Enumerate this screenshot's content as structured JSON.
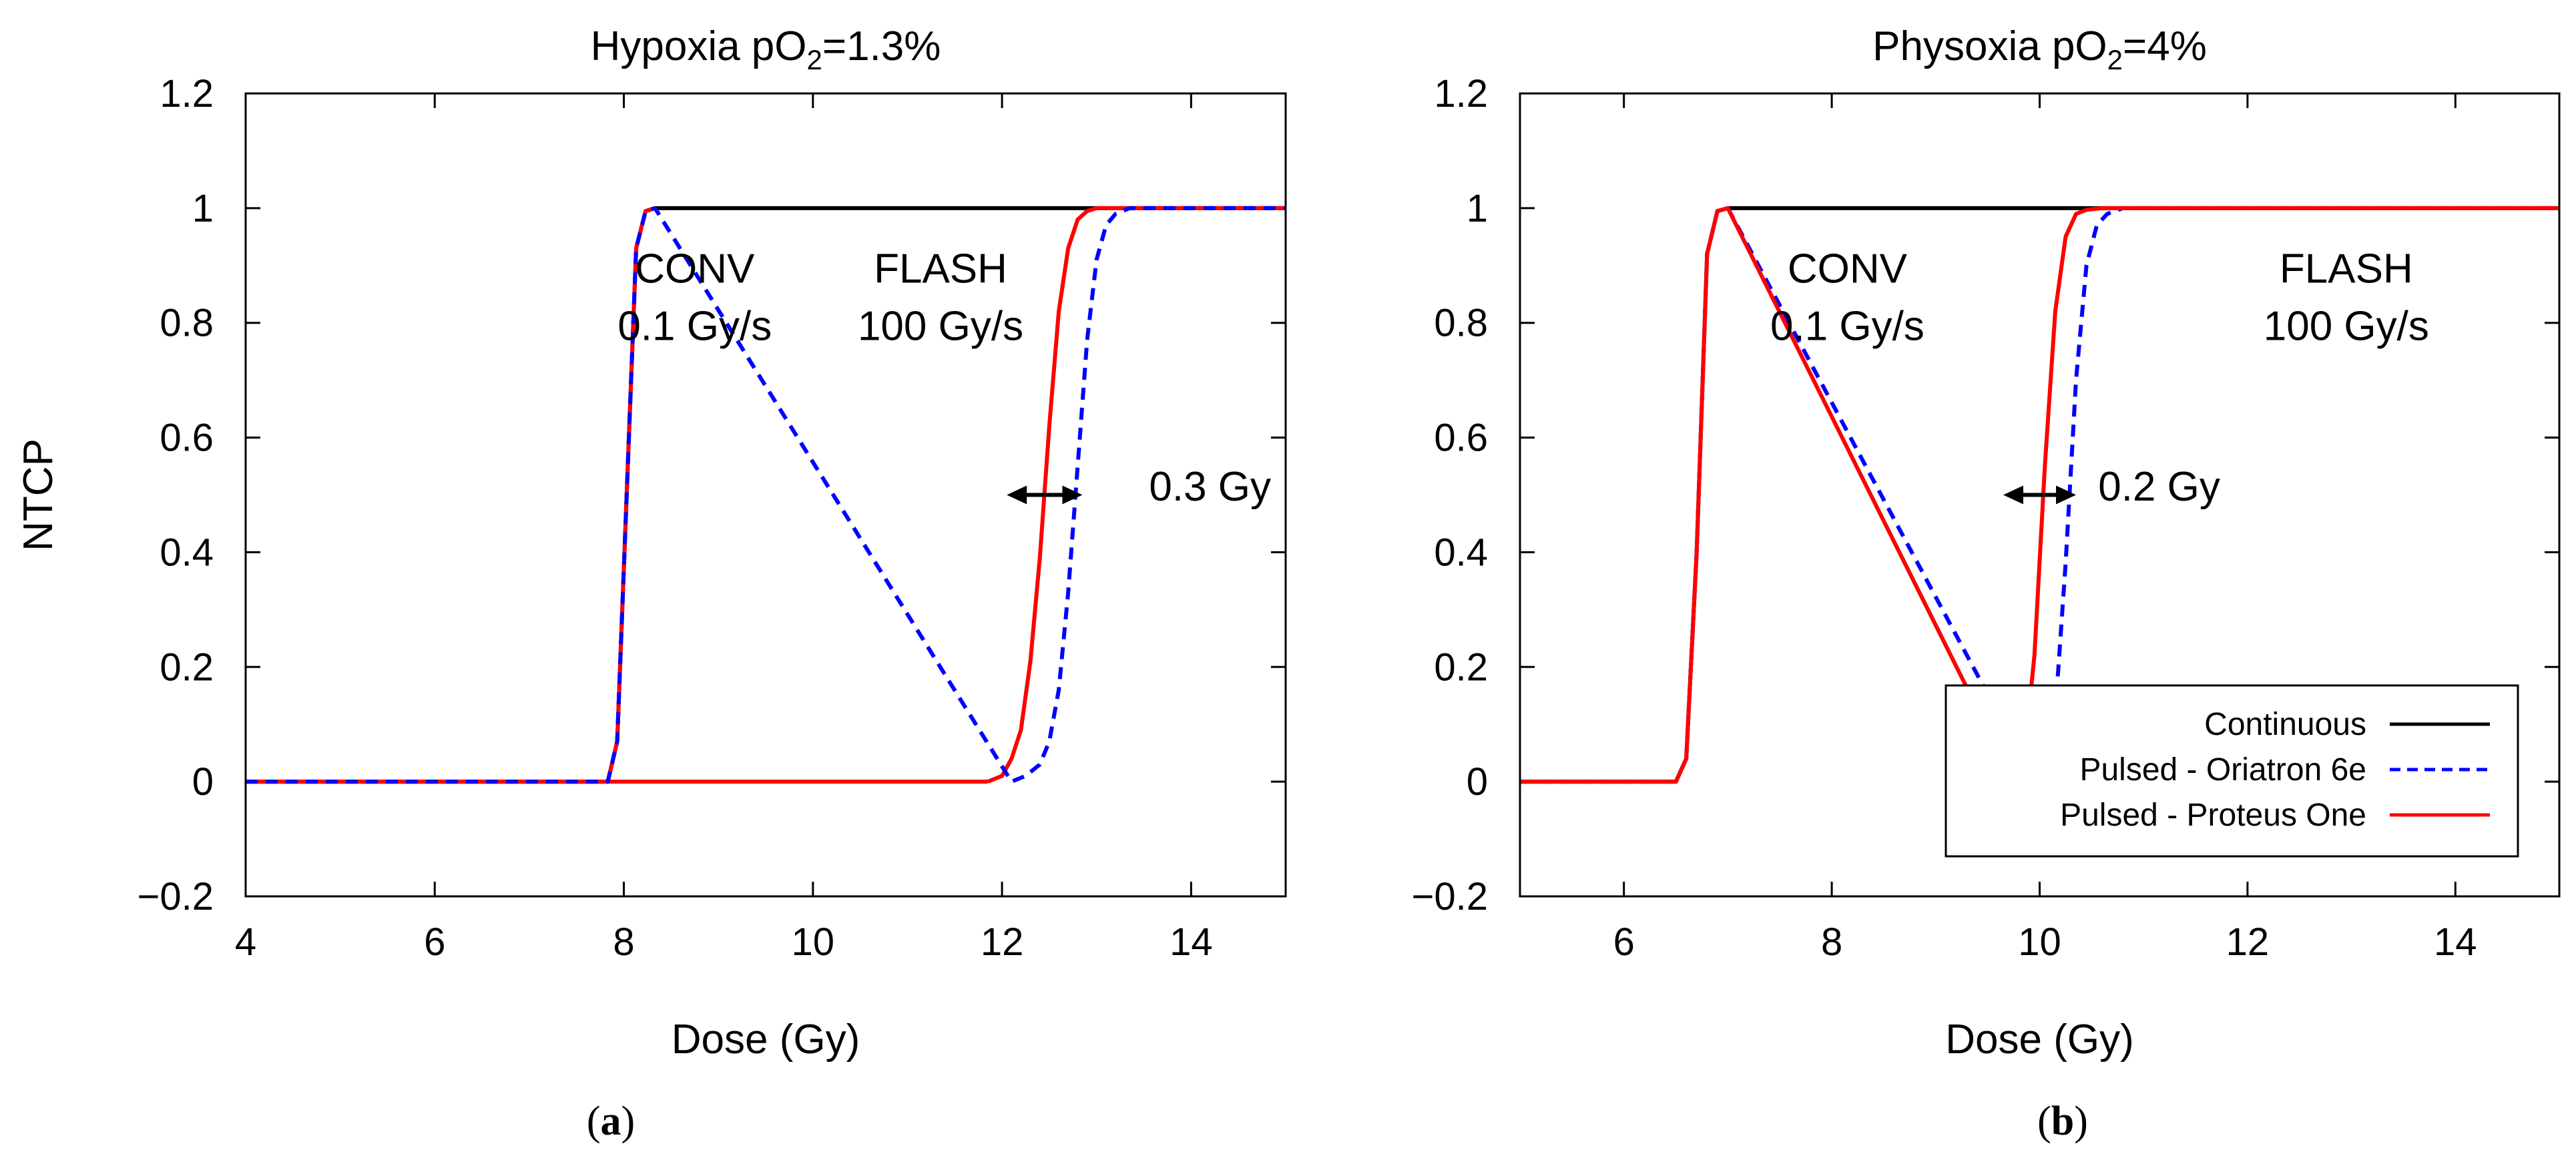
{
  "figure": {
    "panel_labels": [
      "(a)",
      "(b)"
    ],
    "panel_letters": [
      "a",
      "b"
    ]
  },
  "chart_data": [
    {
      "type": "line",
      "panel": "a",
      "title": "Hypoxia pO",
      "title_sub": "2",
      "title_suffix": "=1.3%",
      "xlabel": "Dose (Gy)",
      "ylabel": "NTCP",
      "xlim": [
        4,
        15
      ],
      "ylim": [
        -0.2,
        1.2
      ],
      "xticks": [
        4,
        6,
        8,
        10,
        12,
        14
      ],
      "yticks": [
        -0.2,
        0,
        0.2,
        0.4,
        0.6,
        0.8,
        1,
        1.2
      ],
      "ytick_labels": [
        "−0.2",
        "0",
        "0.2",
        "0.4",
        "0.6",
        "0.8",
        "1",
        "1.2"
      ],
      "grid": false,
      "annotations": [
        {
          "text": "CONV",
          "x": 8.75,
          "y": 0.87
        },
        {
          "text": "0.1 Gy/s",
          "x": 8.75,
          "y": 0.77
        },
        {
          "text": "FLASH",
          "x": 11.35,
          "y": 0.87
        },
        {
          "text": "100 Gy/s",
          "x": 11.35,
          "y": 0.77
        },
        {
          "text": "0.3 Gy",
          "x": 14.2,
          "y": 0.49
        }
      ],
      "arrow": {
        "x1": 12.05,
        "x2": 12.85,
        "y": 0.5
      },
      "series": [
        {
          "name": "Continuous",
          "color": "#000000",
          "dash": "solid",
          "x": [
            4,
            7.83,
            7.93,
            8.03,
            8.13,
            8.23,
            8.33,
            15
          ],
          "y": [
            0,
            0,
            0.07,
            0.5,
            0.93,
            0.995,
            1,
            1
          ]
        },
        {
          "name": "Pulsed - Proteus One",
          "color": "#ff0000",
          "dash": "solid",
          "x": [
            4,
            7.83,
            7.93,
            8.03,
            8.13,
            8.23,
            8.33,
            11.85,
            12.0,
            12.1,
            12.2,
            12.3,
            12.4,
            12.5,
            12.6,
            12.7,
            12.8,
            12.9,
            13.0,
            15
          ],
          "y": [
            0,
            0,
            0.07,
            0.5,
            0.93,
            0.995,
            1,
            0,
            0.01,
            0.04,
            0.09,
            0.21,
            0.39,
            0.62,
            0.82,
            0.93,
            0.98,
            0.995,
            1,
            1
          ],
          "break_after_index": 6,
          "pre_segment_y0": 1
        },
        {
          "name": "Pulsed - Oriatron 6e",
          "color": "#0000ff",
          "dash": "dashed",
          "x": [
            4,
            7.83,
            7.93,
            8.03,
            8.13,
            8.23,
            8.33,
            12.1,
            12.25,
            12.4,
            12.5,
            12.6,
            12.7,
            12.8,
            12.9,
            13.0,
            13.1,
            13.2,
            13.35,
            15
          ],
          "y": [
            0,
            0,
            0.07,
            0.5,
            0.93,
            0.995,
            1,
            0,
            0.01,
            0.03,
            0.07,
            0.16,
            0.33,
            0.55,
            0.77,
            0.91,
            0.97,
            0.99,
            1,
            1
          ]
        }
      ]
    },
    {
      "type": "line",
      "panel": "b",
      "title": "Physoxia pO",
      "title_sub": "2",
      "title_suffix": "=4%",
      "xlabel": "Dose (Gy)",
      "ylabel": "",
      "xlim": [
        5,
        15
      ],
      "ylim": [
        -0.2,
        1.2
      ],
      "xticks": [
        6,
        8,
        10,
        12,
        14
      ],
      "yticks": [
        -0.2,
        0,
        0.2,
        0.4,
        0.6,
        0.8,
        1,
        1.2
      ],
      "ytick_labels": [
        "−0.2",
        "0",
        "0.2",
        "0.4",
        "0.6",
        "0.8",
        "1",
        "1.2"
      ],
      "grid": false,
      "legend": {
        "position": "bottom-right"
      },
      "annotations": [
        {
          "text": "CONV",
          "x": 8.15,
          "y": 0.87
        },
        {
          "text": "0.1 Gy/s",
          "x": 8.15,
          "y": 0.77
        },
        {
          "text": "FLASH",
          "x": 12.95,
          "y": 0.87
        },
        {
          "text": "100 Gy/s",
          "x": 12.95,
          "y": 0.77
        },
        {
          "text": "0.2 Gy",
          "x": 11.15,
          "y": 0.49
        }
      ],
      "arrow": {
        "x1": 9.65,
        "x2": 10.35,
        "y": 0.5
      },
      "series": [
        {
          "name": "Continuous",
          "color": "#000000",
          "dash": "solid",
          "x": [
            5,
            6.5,
            6.6,
            6.7,
            6.8,
            6.9,
            7.0,
            15
          ],
          "y": [
            0,
            0,
            0.04,
            0.4,
            0.92,
            0.995,
            1,
            1
          ]
        },
        {
          "name": "Pulsed - Oriatron 6e",
          "color": "#0000ff",
          "dash": "dashed",
          "x": [
            5,
            6.5,
            6.6,
            6.7,
            6.8,
            6.9,
            7.0,
            9.95,
            10.05,
            10.15,
            10.25,
            10.35,
            10.45,
            10.55,
            10.65,
            10.8,
            15
          ],
          "y": [
            0,
            0,
            0.04,
            0.4,
            0.92,
            0.995,
            1,
            0,
            0.02,
            0.12,
            0.38,
            0.7,
            0.9,
            0.97,
            0.99,
            1,
            1
          ]
        },
        {
          "name": "Pulsed - Proteus One",
          "color": "#ff0000",
          "dash": "solid",
          "x": [
            5,
            6.5,
            6.6,
            6.7,
            6.8,
            6.9,
            7.0,
            9.75,
            9.85,
            9.95,
            10.05,
            10.15,
            10.25,
            10.35,
            10.45,
            10.6,
            15
          ],
          "y": [
            0,
            0,
            0.04,
            0.4,
            0.92,
            0.995,
            1,
            0,
            0.04,
            0.22,
            0.55,
            0.82,
            0.95,
            0.99,
            0.997,
            1,
            1
          ]
        }
      ]
    }
  ]
}
